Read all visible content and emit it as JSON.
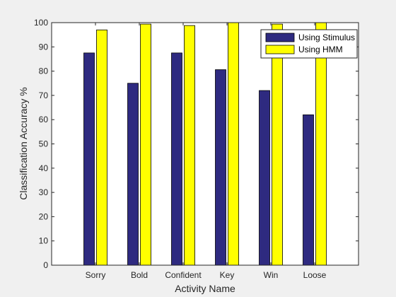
{
  "chart_data": {
    "type": "bar",
    "categories": [
      "Sorry",
      "Bold",
      "Confident",
      "Key",
      "Win",
      "Loose"
    ],
    "series": [
      {
        "name": "Using Stimulus",
        "color": "#2e2a80",
        "values": [
          87.5,
          75,
          87.5,
          80.6,
          72,
          62
        ]
      },
      {
        "name": "Using HMM",
        "color": "#ffff00",
        "values": [
          97,
          99.4,
          98.8,
          100,
          99.4,
          100
        ]
      }
    ],
    "title": "",
    "xlabel": "Activity Name",
    "ylabel": "Classification Accuracy %",
    "ylim": [
      0,
      100
    ],
    "yticks": [
      0,
      10,
      20,
      30,
      40,
      50,
      60,
      70,
      80,
      90,
      100
    ],
    "grid": false,
    "legend_position": "top-right"
  }
}
